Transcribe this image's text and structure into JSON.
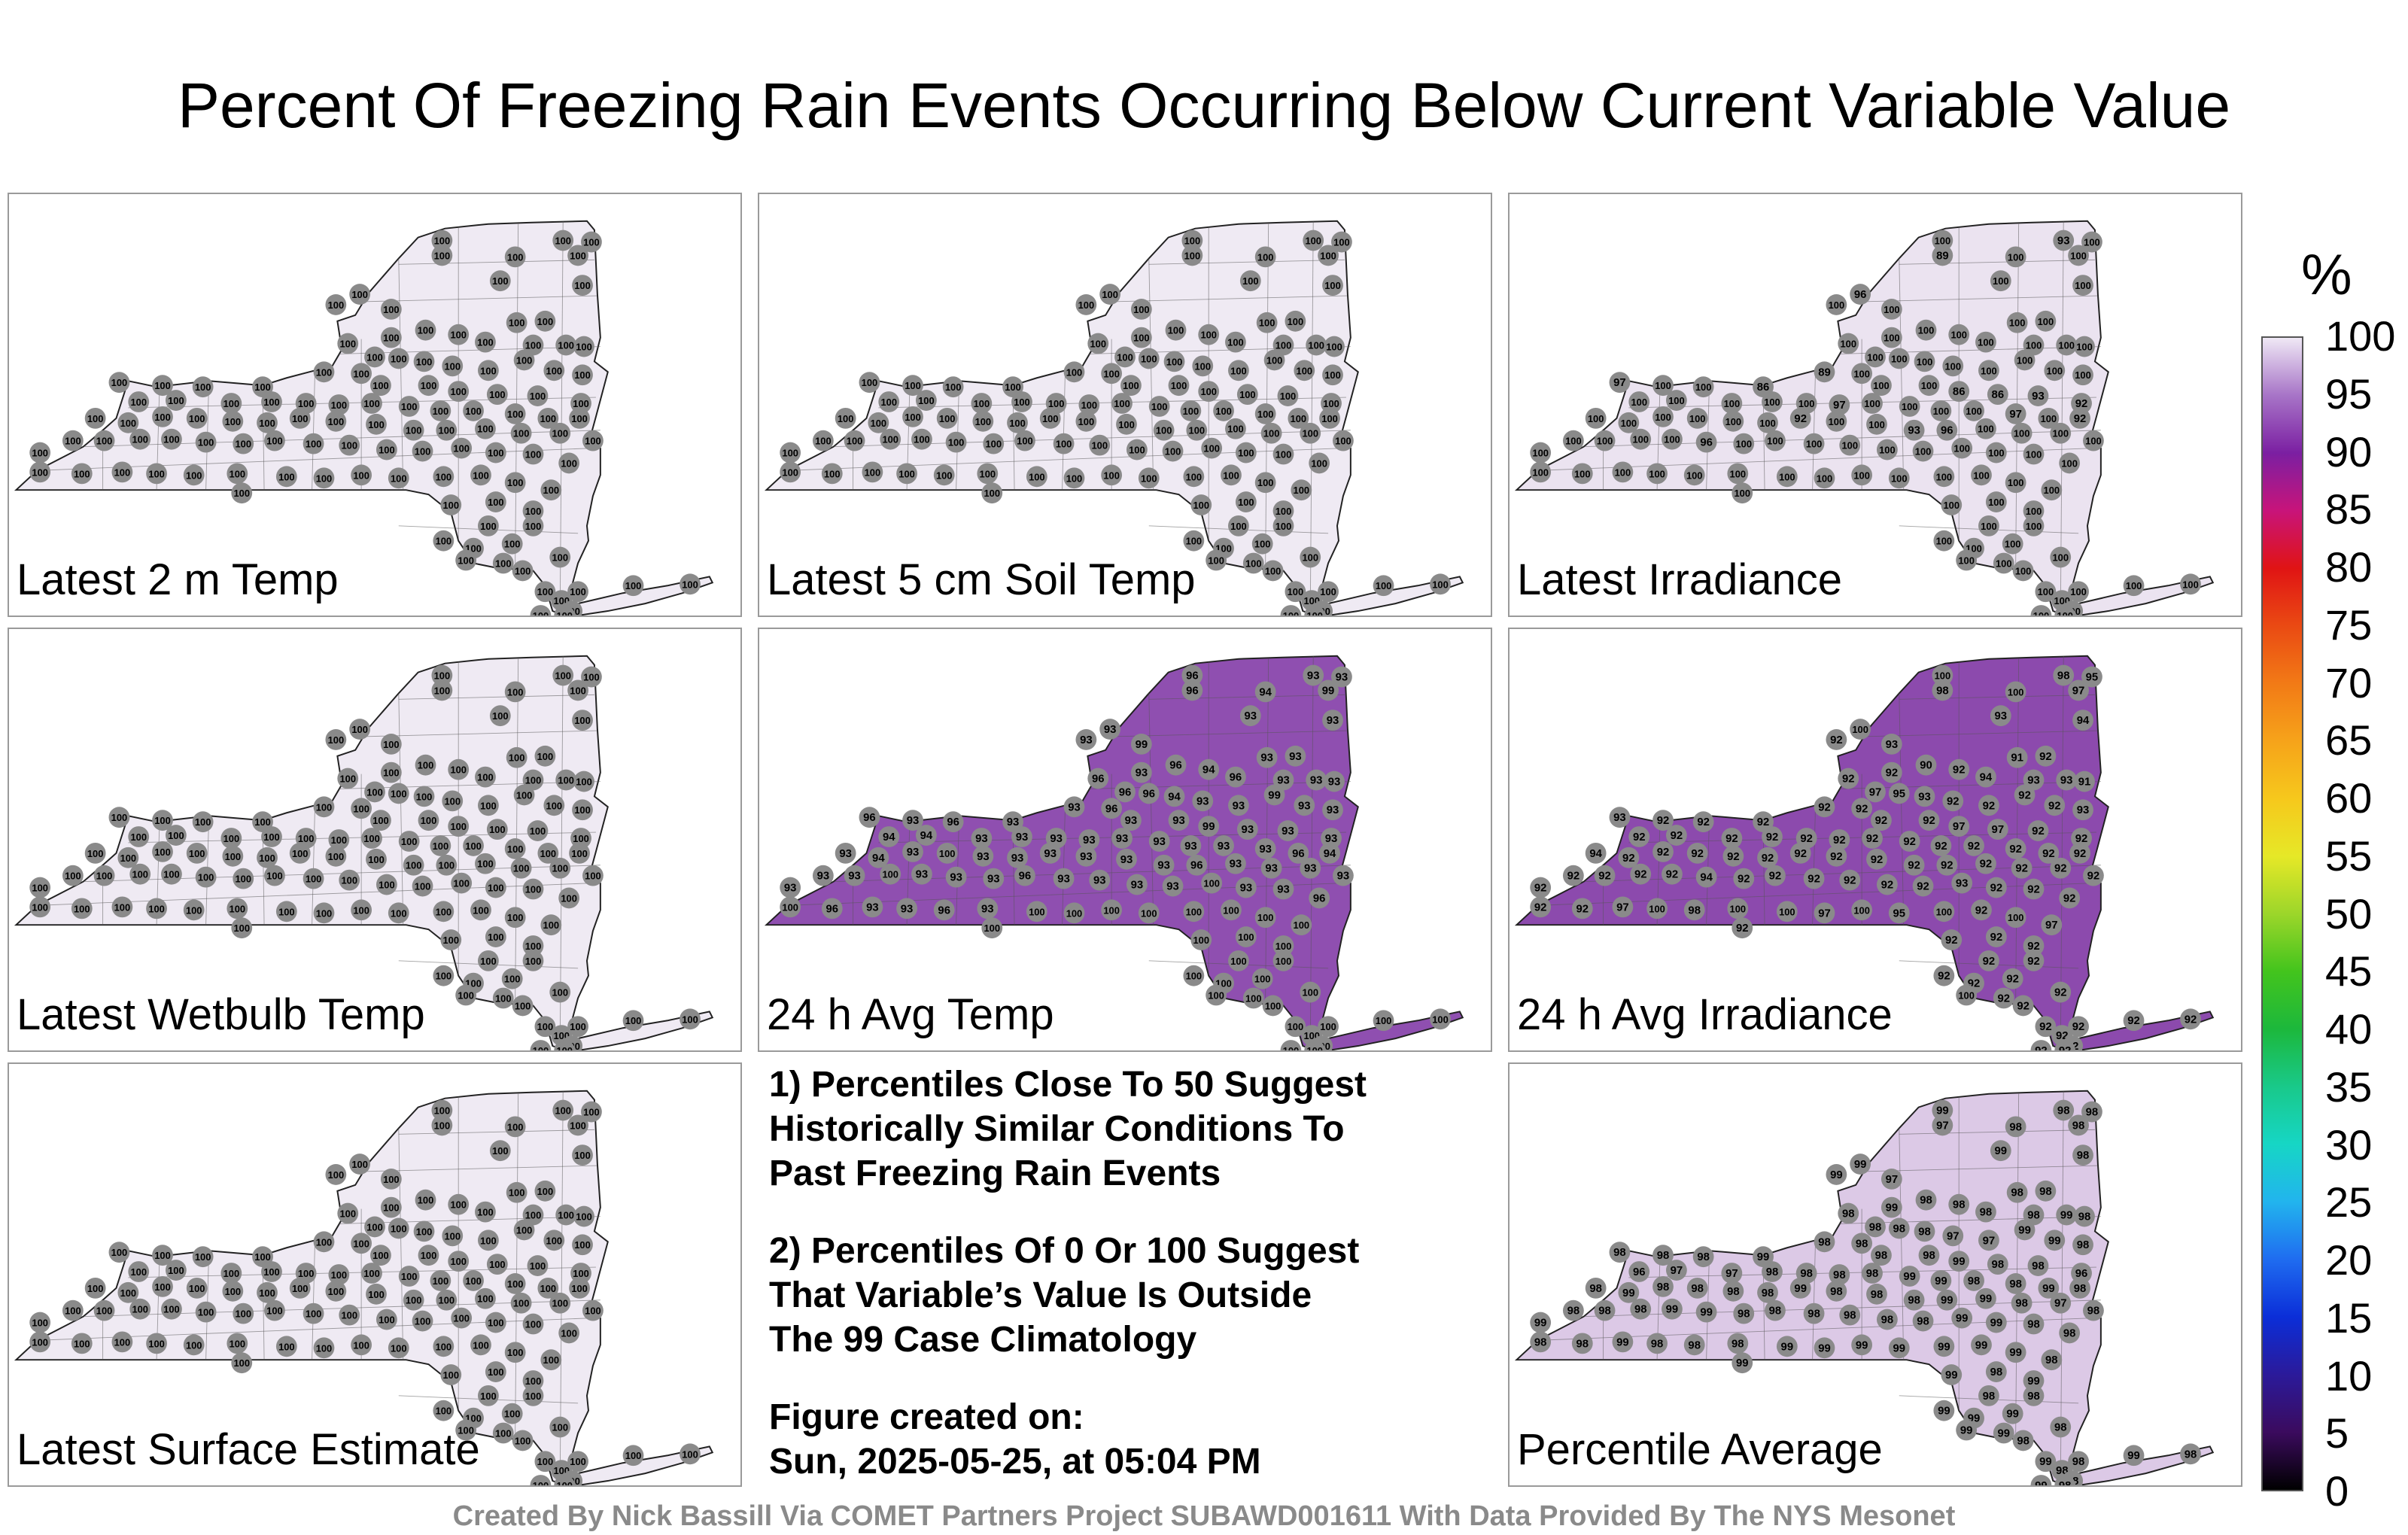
{
  "title": "Percent Of Freezing Rain Events Occurring Below Current Variable Value",
  "panels": [
    {
      "label": "Latest 2 m Temp",
      "fill": "#efeaf3",
      "values": [
        100,
        100,
        100,
        100,
        100,
        100,
        100,
        100,
        100,
        100,
        100,
        100,
        100,
        100,
        100,
        100,
        100,
        100,
        100,
        100,
        100,
        100,
        100,
        100,
        100,
        100,
        100,
        100,
        100,
        100,
        100,
        100,
        100,
        100,
        100,
        100,
        100,
        100,
        100,
        100,
        100,
        100,
        100,
        100,
        100,
        100,
        100,
        100,
        100,
        100,
        100,
        100,
        100,
        100,
        100,
        100,
        100,
        100,
        100,
        100,
        100,
        100,
        100,
        100,
        100,
        100,
        100,
        100,
        100,
        100,
        100,
        100,
        100,
        100,
        100,
        100,
        100,
        100,
        100,
        100,
        100,
        100,
        100,
        100,
        100,
        100,
        100,
        100,
        100,
        100,
        100,
        100,
        100,
        100,
        100,
        100,
        100,
        100,
        100,
        100,
        100,
        100,
        100,
        100,
        100,
        100,
        100,
        100,
        100,
        100,
        100,
        100,
        100,
        100,
        100,
        100,
        100,
        100,
        100,
        100
      ]
    },
    {
      "label": "Latest 5 cm Soil Temp",
      "fill": "#efeaf3",
      "values": [
        100,
        100,
        100,
        100,
        100,
        100,
        100,
        100,
        100,
        100,
        100,
        100,
        100,
        100,
        100,
        100,
        100,
        100,
        100,
        100,
        100,
        100,
        100,
        100,
        100,
        100,
        100,
        100,
        100,
        100,
        100,
        100,
        100,
        100,
        100,
        100,
        100,
        100,
        100,
        100,
        100,
        100,
        100,
        100,
        100,
        100,
        100,
        100,
        100,
        100,
        100,
        100,
        100,
        100,
        100,
        100,
        100,
        100,
        100,
        100,
        100,
        100,
        100,
        100,
        100,
        100,
        100,
        100,
        100,
        100,
        100,
        100,
        100,
        100,
        100,
        100,
        100,
        100,
        100,
        100,
        100,
        100,
        100,
        100,
        100,
        100,
        100,
        100,
        100,
        100,
        100,
        100,
        100,
        100,
        100,
        100,
        100,
        100,
        100,
        100,
        100,
        100,
        100,
        100,
        100,
        100,
        100,
        100,
        100,
        100,
        100,
        100,
        100,
        100,
        100,
        100,
        100,
        100,
        100,
        100
      ]
    },
    {
      "label": "Latest Irradiance",
      "fill": "#ebe3f0",
      "values": [
        100,
        93,
        100,
        89,
        100,
        100,
        96,
        100,
        100,
        100,
        100,
        100,
        100,
        100,
        100,
        100,
        100,
        100,
        100,
        100,
        100,
        100,
        100,
        100,
        100,
        100,
        100,
        100,
        100,
        100,
        97,
        100,
        100,
        86,
        89,
        100,
        100,
        86,
        86,
        93,
        92,
        100,
        100,
        100,
        100,
        100,
        97,
        100,
        100,
        100,
        100,
        97,
        100,
        92,
        100,
        100,
        100,
        100,
        100,
        100,
        92,
        100,
        100,
        93,
        96,
        100,
        100,
        100,
        100,
        100,
        100,
        100,
        100,
        96,
        100,
        100,
        100,
        100,
        100,
        100,
        100,
        100,
        100,
        100,
        100,
        100,
        100,
        100,
        100,
        100,
        100,
        100,
        100,
        100,
        100,
        100,
        100,
        100,
        100,
        100,
        100,
        100,
        100,
        100,
        100,
        100,
        100,
        100,
        100,
        100,
        100,
        100,
        100,
        100,
        100,
        100,
        100,
        100,
        100,
        100
      ]
    },
    {
      "label": "Latest Wetbulb Temp",
      "fill": "#efeaf3",
      "values": [
        100,
        100,
        100,
        100,
        100,
        100,
        100,
        100,
        100,
        100,
        100,
        100,
        100,
        100,
        100,
        100,
        100,
        100,
        100,
        100,
        100,
        100,
        100,
        100,
        100,
        100,
        100,
        100,
        100,
        100,
        100,
        100,
        100,
        100,
        100,
        100,
        100,
        100,
        100,
        100,
        100,
        100,
        100,
        100,
        100,
        100,
        100,
        100,
        100,
        100,
        100,
        100,
        100,
        100,
        100,
        100,
        100,
        100,
        100,
        100,
        100,
        100,
        100,
        100,
        100,
        100,
        100,
        100,
        100,
        100,
        100,
        100,
        100,
        100,
        100,
        100,
        100,
        100,
        100,
        100,
        100,
        100,
        100,
        100,
        100,
        100,
        100,
        100,
        100,
        100,
        100,
        100,
        100,
        100,
        100,
        100,
        100,
        100,
        100,
        100,
        100,
        100,
        100,
        100,
        100,
        100,
        100,
        100,
        100,
        100,
        100,
        100,
        100,
        100,
        100,
        100,
        100,
        100,
        100,
        100
      ]
    },
    {
      "label": "24 h Avg Temp",
      "fill": "#8f4fb0",
      "values": [
        96,
        93,
        93,
        96,
        99,
        94,
        93,
        93,
        93,
        93,
        99,
        93,
        93,
        96,
        93,
        94,
        93,
        96,
        93,
        93,
        96,
        96,
        96,
        94,
        93,
        93,
        99,
        93,
        93,
        96,
        96,
        93,
        96,
        93,
        93,
        93,
        93,
        99,
        93,
        93,
        93,
        94,
        94,
        93,
        93,
        93,
        93,
        93,
        93,
        93,
        93,
        93,
        96,
        94,
        93,
        94,
        93,
        100,
        93,
        93,
        93,
        93,
        93,
        93,
        96,
        93,
        93,
        93,
        93,
        93,
        93,
        100,
        93,
        93,
        93,
        96,
        93,
        93,
        93,
        93,
        100,
        93,
        93,
        96,
        93,
        96,
        93,
        93,
        96,
        93,
        100,
        100,
        100,
        100,
        100,
        100,
        100,
        100,
        100,
        100,
        100,
        100,
        100,
        100,
        100,
        100,
        100,
        100,
        100,
        100,
        100,
        100,
        100,
        100,
        100,
        100,
        100,
        100,
        100,
        100
      ]
    },
    {
      "label": "24 h Avg Irradiance",
      "fill": "#8c4aad",
      "values": [
        100,
        98,
        95,
        98,
        97,
        100,
        100,
        93,
        94,
        92,
        93,
        92,
        91,
        90,
        91,
        92,
        92,
        94,
        93,
        93,
        92,
        97,
        95,
        93,
        92,
        92,
        92,
        92,
        93,
        92,
        93,
        92,
        92,
        92,
        92,
        92,
        92,
        97,
        97,
        92,
        92,
        92,
        92,
        92,
        92,
        92,
        92,
        92,
        92,
        92,
        92,
        92,
        92,
        92,
        94,
        92,
        92,
        92,
        92,
        92,
        92,
        92,
        92,
        92,
        92,
        92,
        92,
        92,
        92,
        92,
        92,
        92,
        92,
        94,
        92,
        92,
        92,
        92,
        92,
        92,
        93,
        92,
        92,
        92,
        92,
        92,
        97,
        100,
        98,
        100,
        100,
        97,
        100,
        95,
        100,
        92,
        100,
        97,
        92,
        92,
        92,
        92,
        92,
        92,
        92,
        92,
        92,
        92,
        92,
        92,
        92,
        92,
        92,
        92,
        92,
        92,
        92,
        100,
        92,
        92
      ]
    },
    {
      "label": "Latest Surface Estimate",
      "fill": "#efeaf3",
      "values": [
        100,
        100,
        100,
        100,
        100,
        100,
        100,
        100,
        100,
        100,
        100,
        100,
        100,
        100,
        100,
        100,
        100,
        100,
        100,
        100,
        100,
        100,
        100,
        100,
        100,
        100,
        100,
        100,
        100,
        100,
        100,
        100,
        100,
        100,
        100,
        100,
        100,
        100,
        100,
        100,
        100,
        100,
        100,
        100,
        100,
        100,
        100,
        100,
        100,
        100,
        100,
        100,
        100,
        100,
        100,
        100,
        100,
        100,
        100,
        100,
        100,
        100,
        100,
        100,
        100,
        100,
        100,
        100,
        100,
        100,
        100,
        100,
        100,
        100,
        100,
        100,
        100,
        100,
        100,
        100,
        100,
        100,
        100,
        100,
        100,
        100,
        100,
        100,
        100,
        100,
        100,
        100,
        100,
        100,
        100,
        100,
        100,
        100,
        100,
        100,
        100,
        100,
        100,
        100,
        100,
        100,
        100,
        100,
        100,
        100,
        100,
        100,
        100,
        100,
        100,
        100,
        100,
        100,
        100,
        100
      ]
    },
    {
      "label": "Percentile Average",
      "fill": "#dcc9e6",
      "values": [
        99,
        98,
        98,
        97,
        98,
        98,
        99,
        99,
        98,
        99,
        97,
        98,
        98,
        98,
        98,
        98,
        99,
        98,
        98,
        99,
        98,
        98,
        98,
        98,
        97,
        97,
        99,
        99,
        98,
        98,
        98,
        98,
        98,
        99,
        98,
        98,
        98,
        99,
        98,
        98,
        96,
        97,
        96,
        97,
        98,
        98,
        98,
        98,
        99,
        99,
        98,
        98,
        99,
        98,
        98,
        99,
        98,
        98,
        98,
        98,
        99,
        98,
        98,
        98,
        99,
        99,
        98,
        97,
        98,
        98,
        98,
        98,
        99,
        99,
        98,
        98,
        98,
        98,
        98,
        98,
        99,
        99,
        98,
        98,
        99,
        98,
        99,
        98,
        98,
        98,
        99,
        99,
        99,
        99,
        99,
        99,
        99,
        98,
        99,
        99,
        98,
        99,
        98,
        98,
        99,
        99,
        98,
        98,
        99,
        98,
        98,
        98,
        99,
        98,
        99,
        98,
        98,
        99,
        99,
        99
      ]
    }
  ],
  "notes": [
    [
      "1) Percentiles Close To 50 Suggest",
      "Historically Similar Conditions To",
      "Past Freezing Rain Events"
    ],
    [
      "2) Percentiles Of 0 Or 100 Suggest",
      "That Variable’s Value Is Outside",
      "The 99 Case Climatology"
    ],
    [
      "Figure created on:",
      "Sun, 2025-05-25, at 05:04 PM"
    ]
  ],
  "colorbar": {
    "unit": "%",
    "ticks": [
      "100",
      "95",
      "90",
      "85",
      "80",
      "75",
      "70",
      "65",
      "60",
      "55",
      "50",
      "45",
      "40",
      "35",
      "30",
      "25",
      "20",
      "15",
      "10",
      "5",
      "0"
    ],
    "colors": [
      "#000000",
      "#3b0b5e",
      "#2b1a9a",
      "#0b2ed8",
      "#1f6cf0",
      "#22b4ee",
      "#16d6c5",
      "#19c98a",
      "#1cb83c",
      "#43c41d",
      "#9cd62a",
      "#e6e827",
      "#f6c81c",
      "#f6a31a",
      "#f27a16",
      "#ea4a13",
      "#e01414",
      "#c8147a",
      "#7b1fa2",
      "#a774c7",
      "#efe8f5"
    ]
  },
  "footer": "Created By Nick Bassill Via COMET Partners Project SUBAWD001611 With Data Provided By The NYS Mesonet"
}
